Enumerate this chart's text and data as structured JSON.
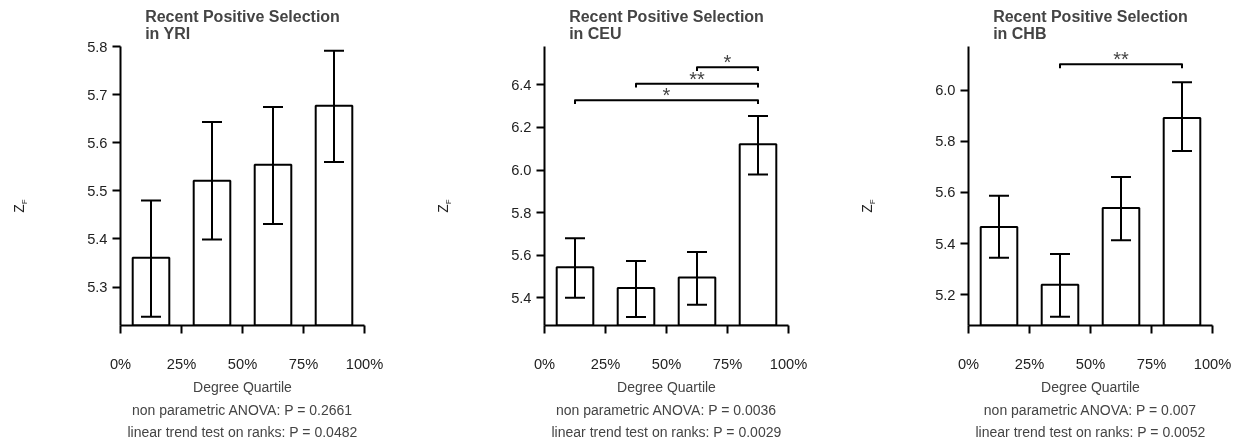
{
  "chart_data": [
    {
      "type": "bar",
      "title": "Recent Positive Selection\nin YRI",
      "xlabel": "Degree Quartile",
      "ylabel": "Z$_{F}$",
      "x": [
        12.5,
        37.5,
        62.5,
        87.5
      ],
      "values": [
        5.361,
        5.521,
        5.554,
        5.677
      ],
      "color": "#ffffff",
      "errors": [
        [
          5.238,
          5.48
        ],
        [
          5.399,
          5.643
        ],
        [
          5.431,
          5.674
        ],
        [
          5.56,
          5.791
        ]
      ],
      "xlim": [
        0,
        100
      ],
      "xticks": [
        {
          "value": 0,
          "label": "0%"
        },
        {
          "value": 25,
          "label": "25%"
        },
        {
          "value": 50,
          "label": "50%"
        },
        {
          "value": 75,
          "label": "75%"
        },
        {
          "value": 100,
          "label": "100%"
        }
      ],
      "ylim": [
        5.22,
        5.8
      ],
      "yticks": [
        5.3,
        5.4,
        5.5,
        5.6,
        5.7,
        5.8
      ],
      "grid": false,
      "annotations": [
        "non parametric ANOVA: P = 0.2661",
        "linear trend test on ranks: P = 0.0482"
      ]
    },
    {
      "type": "bar",
      "title": "Recent Positive Selection\nin CEU",
      "xlabel": "Degree Quartile",
      "ylabel": "Z$_{F}$",
      "x": [
        12.5,
        37.5,
        62.5,
        87.5
      ],
      "values": [
        5.543,
        5.446,
        5.495,
        6.121
      ],
      "color": "#ffffff",
      "errors": [
        [
          5.4,
          5.68
        ],
        [
          5.31,
          5.573
        ],
        [
          5.368,
          5.615
        ],
        [
          5.979,
          6.254
        ]
      ],
      "xlim": [
        0,
        100
      ],
      "xticks": [
        {
          "value": 0,
          "label": "0%"
        },
        {
          "value": 25,
          "label": "25%"
        },
        {
          "value": 50,
          "label": "50%"
        },
        {
          "value": 75,
          "label": "75%"
        },
        {
          "value": 100,
          "label": "100%"
        }
      ],
      "ylim": [
        5.27,
        6.58
      ],
      "yticks": [
        5.4,
        5.6,
        5.8,
        {
          "value": 6.0,
          "label": "6.0"
        },
        6.2,
        6.4
      ],
      "grid": false,
      "series": [
        {
          "type": "line",
          "color": "#000000",
          "x": [
            62.5,
            62.5,
            87.5,
            87.5
          ],
          "values": [
            6.465,
            6.483,
            6.483,
            6.465
          ]
        },
        {
          "type": "line",
          "color": "#000000",
          "x": [
            37.5,
            37.5,
            87.5,
            87.5
          ],
          "values": [
            6.387,
            6.405,
            6.405,
            6.387
          ]
        },
        {
          "type": "line",
          "color": "#000000",
          "x": [
            12.5,
            12.5,
            87.5,
            87.5
          ],
          "values": [
            6.31,
            6.328,
            6.328,
            6.31
          ]
        }
      ],
      "annotations": [
        "*",
        "**",
        "*",
        "non parametric ANOVA: P = 0.0036",
        "linear trend test on ranks: P = 0.0029"
      ]
    },
    {
      "type": "bar",
      "title": "Recent Positive Selection\nin CHB",
      "xlabel": "Degree Quartile",
      "ylabel": "Z$_{F}$",
      "x": [
        12.5,
        37.5,
        62.5,
        87.5
      ],
      "values": [
        5.465,
        5.239,
        5.539,
        5.891
      ],
      "color": "#ffffff",
      "errors": [
        [
          5.345,
          5.587
        ],
        [
          5.114,
          5.359
        ],
        [
          5.413,
          5.66
        ],
        [
          5.762,
          6.03
        ]
      ],
      "xlim": [
        0,
        100
      ],
      "xticks": [
        {
          "value": 0,
          "label": "0%"
        },
        {
          "value": 25,
          "label": "25%"
        },
        {
          "value": 50,
          "label": "50%"
        },
        {
          "value": 75,
          "label": "75%"
        },
        {
          "value": 100,
          "label": "100%"
        }
      ],
      "ylim": [
        5.08,
        6.17
      ],
      "yticks": [
        5.2,
        5.4,
        5.6,
        5.8,
        {
          "value": 6.0,
          "label": "6.0"
        }
      ],
      "grid": false,
      "series": [
        {
          "type": "line",
          "color": "#000000",
          "x": [
            37.5,
            37.5,
            87.5,
            87.5
          ],
          "values": [
            6.085,
            6.101,
            6.101,
            6.085
          ]
        }
      ],
      "annotations": [
        "**",
        "non parametric ANOVA: P = 0.007",
        "linear trend test on ranks: P = 0.0052"
      ]
    }
  ]
}
